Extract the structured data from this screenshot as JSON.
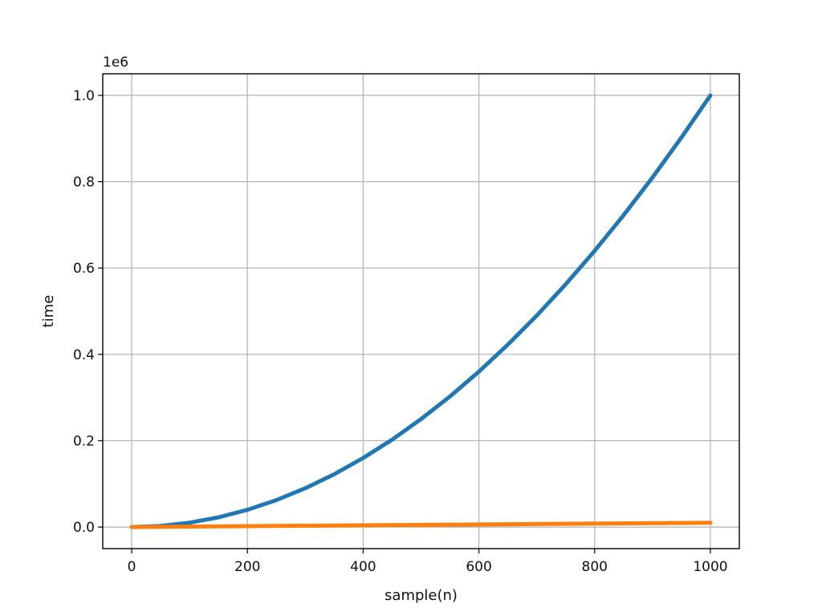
{
  "chart_data": {
    "type": "line",
    "title": "",
    "xlabel": "sample(n)",
    "ylabel": "time",
    "y_offset_label": "1e6",
    "xlim": [
      -50,
      1050
    ],
    "ylim": [
      -0.05,
      1.05
    ],
    "x_ticks": [
      0,
      200,
      400,
      600,
      800,
      1000
    ],
    "x_tick_labels": [
      "0",
      "200",
      "400",
      "600",
      "800",
      "1000"
    ],
    "y_ticks": [
      0.0,
      0.2,
      0.4,
      0.6,
      0.8,
      1.0
    ],
    "y_tick_labels": [
      "0.0",
      "0.2",
      "0.4",
      "0.6",
      "0.8",
      "1.0"
    ],
    "grid": true,
    "series": [
      {
        "color": "#1f77b4",
        "x": [
          0,
          50,
          100,
          150,
          200,
          250,
          300,
          350,
          400,
          450,
          500,
          550,
          600,
          650,
          700,
          750,
          800,
          850,
          900,
          950,
          1000
        ],
        "y": [
          0.0,
          0.0025,
          0.01,
          0.0225,
          0.04,
          0.0625,
          0.09,
          0.1225,
          0.16,
          0.2025,
          0.25,
          0.3025,
          0.36,
          0.4225,
          0.49,
          0.5625,
          0.64,
          0.7225,
          0.81,
          0.9025,
          1.0
        ]
      },
      {
        "color": "#ff7f0e",
        "x": [
          0,
          200,
          400,
          600,
          800,
          1000
        ],
        "y": [
          0.0,
          0.002,
          0.004,
          0.006,
          0.008,
          0.01
        ]
      }
    ]
  }
}
